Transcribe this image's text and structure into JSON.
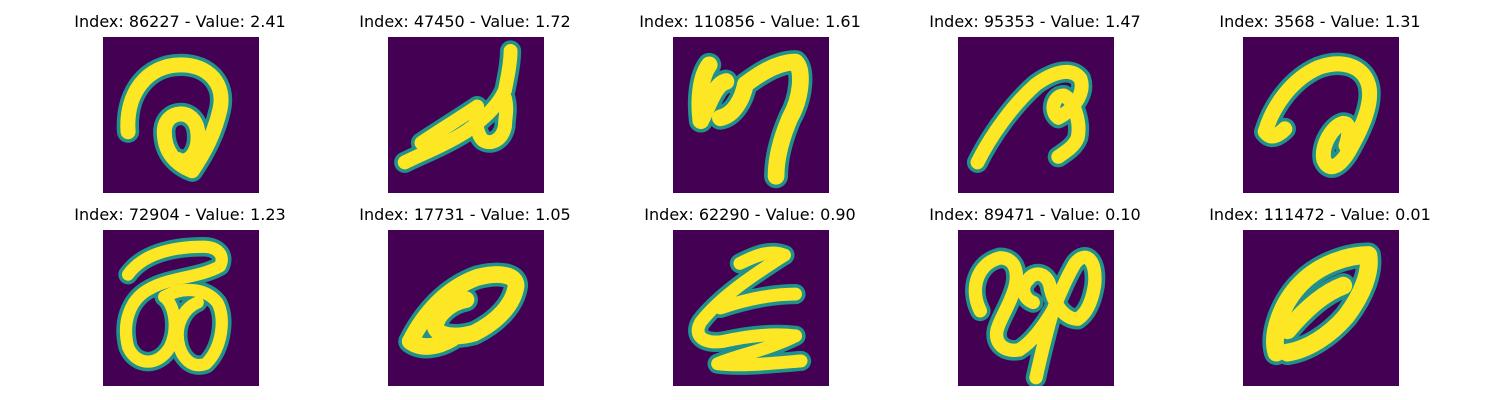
{
  "colors": {
    "background": "#440154",
    "stroke_edge": "#21918c",
    "stroke_core": "#fde725"
  },
  "panels": [
    {
      "title": "Index: 86227 - Value: 2.41",
      "index": 86227,
      "value": 2.41
    },
    {
      "title": "Index: 47450 - Value: 1.72",
      "index": 47450,
      "value": 1.72
    },
    {
      "title": "Index: 110856 - Value: 1.61",
      "index": 110856,
      "value": 1.61
    },
    {
      "title": "Index: 95353 - Value: 1.47",
      "index": 95353,
      "value": 1.47
    },
    {
      "title": "Index: 3568 - Value: 1.31",
      "index": 3568,
      "value": 1.31
    },
    {
      "title": "Index: 72904 - Value: 1.23",
      "index": 72904,
      "value": 1.23
    },
    {
      "title": "Index: 17731 - Value: 1.05",
      "index": 17731,
      "value": 1.05
    },
    {
      "title": "Index: 62290 - Value: 0.90",
      "index": 62290,
      "value": 0.9
    },
    {
      "title": "Index: 89471 - Value: 0.10",
      "index": 89471,
      "value": 0.1
    },
    {
      "title": "Index: 111472 - Value: 0.01",
      "index": 111472,
      "value": 0.01
    }
  ]
}
